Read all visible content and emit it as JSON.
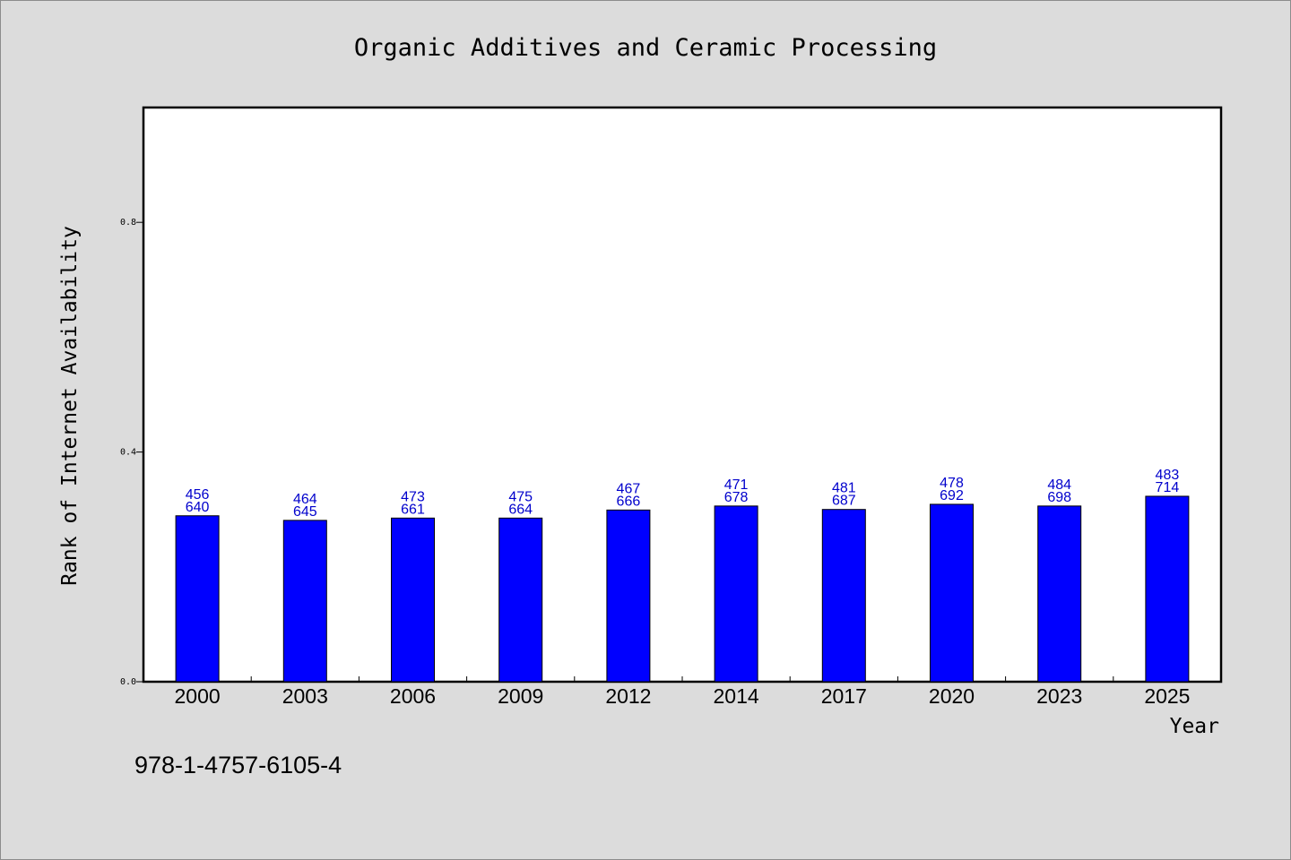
{
  "chart_data": {
    "type": "bar",
    "title": "Organic Additives and Ceramic Processing",
    "xlabel": "Year",
    "ylabel": "Rank of Internet Availability",
    "categories": [
      "2000",
      "2003",
      "2006",
      "2009",
      "2012",
      "2014",
      "2017",
      "2020",
      "2023",
      "2025"
    ],
    "values": [
      0.289,
      0.281,
      0.285,
      0.285,
      0.299,
      0.306,
      0.3,
      0.309,
      0.306,
      0.323
    ],
    "bar_labels_top": [
      "456",
      "464",
      "473",
      "475",
      "467",
      "471",
      "481",
      "478",
      "484",
      "483"
    ],
    "bar_labels_bottom": [
      "640",
      "645",
      "661",
      "664",
      "666",
      "678",
      "687",
      "692",
      "698",
      "714"
    ],
    "ylim": [
      0.0,
      1.0
    ],
    "yticks": [
      "0.0",
      "0.4",
      "0.8"
    ],
    "grid": false,
    "legend": "none",
    "bar_color": "#0000ff",
    "label_color": "#0000cc"
  },
  "footnote": "978-1-4757-6105-4"
}
